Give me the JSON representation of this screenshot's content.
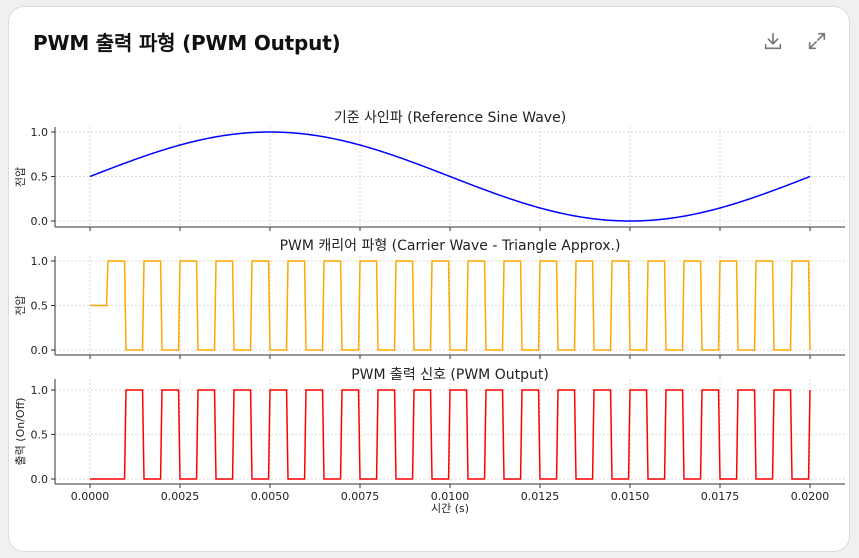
{
  "card": {
    "title": "PWM 출력 파형 (PWM Output)",
    "download_icon": "download-icon",
    "expand_icon": "expand-icon"
  },
  "chart_data": [
    {
      "type": "line",
      "title": "기준 사인파 (Reference Sine Wave)",
      "xlabel": "",
      "ylabel": "전압",
      "color": "#0000ff",
      "function": "0.5 + 0.5*sin(2*pi*50*t)",
      "xlim": [
        0,
        0.02
      ],
      "ylim": [
        0.0,
        1.0
      ],
      "yticks": [
        "0.0",
        "0.5",
        "1.0"
      ],
      "grid": true
    },
    {
      "type": "line",
      "title": "PWM 캐리어 파형 (Carrier Wave - Triangle Approx.)",
      "xlabel": "",
      "ylabel": "전압",
      "color": "#ffa500",
      "function": "0.5 + 0.5*sign(sin(2*pi*1000*t))",
      "x": [
        0.0,
        0.0005,
        0.001,
        0.0015,
        0.002,
        0.0025,
        0.003,
        0.0035,
        0.004,
        0.0045,
        0.005,
        0.0055,
        0.006,
        0.0065,
        0.007,
        0.0075,
        0.008,
        0.0085,
        0.009,
        0.0095,
        0.01,
        0.0105,
        0.011,
        0.0115,
        0.012,
        0.0125,
        0.013,
        0.0135,
        0.014,
        0.0145,
        0.015,
        0.0155,
        0.016,
        0.0165,
        0.017,
        0.0175,
        0.018,
        0.0185,
        0.019,
        0.0195,
        0.02
      ],
      "values": [
        0.5,
        1.0,
        0.0,
        1.0,
        0.0,
        1.0,
        0.0,
        1.0,
        0.0,
        1.0,
        0.0,
        1.0,
        0.0,
        1.0,
        0.0,
        1.0,
        0.0,
        1.0,
        0.0,
        1.0,
        0.0,
        1.0,
        0.0,
        1.0,
        0.0,
        1.0,
        0.0,
        1.0,
        0.0,
        1.0,
        0.0,
        1.0,
        0.0,
        1.0,
        0.0,
        1.0,
        0.0,
        1.0,
        0.0,
        1.0,
        0.0
      ],
      "xlim": [
        0,
        0.02
      ],
      "ylim": [
        0.0,
        1.0
      ],
      "yticks": [
        "0.0",
        "0.5",
        "1.0"
      ],
      "grid": true
    },
    {
      "type": "line",
      "title": "PWM 출력 신호 (PWM Output)",
      "xlabel": "시간 (s)",
      "ylabel": "출력 (On/Off)",
      "color": "#ff0000",
      "function": "1 if sine > carrier else 0",
      "x": [
        0.0,
        0.0005,
        0.001,
        0.0015,
        0.002,
        0.0025,
        0.003,
        0.0035,
        0.004,
        0.0045,
        0.005,
        0.0055,
        0.006,
        0.0065,
        0.007,
        0.0075,
        0.008,
        0.0085,
        0.009,
        0.0095,
        0.01,
        0.0105,
        0.011,
        0.0115,
        0.012,
        0.0125,
        0.013,
        0.0135,
        0.014,
        0.0145,
        0.015,
        0.0155,
        0.016,
        0.0165,
        0.017,
        0.0175,
        0.018,
        0.0185,
        0.019,
        0.0195,
        0.02
      ],
      "values": [
        0,
        0,
        1,
        0,
        1,
        0,
        1,
        0,
        1,
        0,
        1,
        0,
        1,
        0,
        1,
        0,
        1,
        0,
        1,
        0,
        1,
        0,
        1,
        0,
        1,
        0,
        1,
        0,
        1,
        0,
        1,
        0,
        1,
        0,
        1,
        0,
        1,
        0,
        1,
        0,
        1
      ],
      "xlim": [
        0,
        0.02
      ],
      "ylim": [
        0.0,
        1.0
      ],
      "xticks": [
        "0.0000",
        "0.0025",
        "0.0050",
        "0.0075",
        "0.0100",
        "0.0125",
        "0.0150",
        "0.0175",
        "0.0200"
      ],
      "yticks": [
        "0.0",
        "0.5",
        "1.0"
      ],
      "grid": true
    }
  ]
}
